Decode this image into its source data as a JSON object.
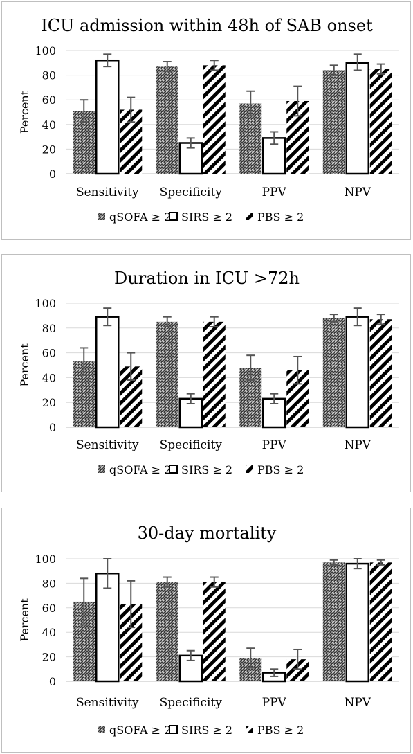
{
  "legend_labels": [
    "qSOFA ≥ 2",
    "SIRS ≥ 2",
    "PBS ≥ 2"
  ],
  "colors": {
    "axis": "#bfbfbf",
    "grid": "#d9d9d9",
    "bar": "#000000",
    "error": "#555555",
    "text": "#000000"
  },
  "chart_data": [
    {
      "type": "bar",
      "title": "ICU admission within 48h of SAB onset",
      "ylabel": "Percent",
      "xlabel": "",
      "categories": [
        "Sensitivity",
        "Specificity",
        "PPV",
        "NPV"
      ],
      "ylim": [
        0,
        100
      ],
      "yticks": [
        0,
        20,
        40,
        60,
        80,
        100
      ],
      "grid": true,
      "legend_position": "bottom",
      "series": [
        {
          "name": "qSOFA ≥ 2",
          "pattern": "crosshatch",
          "values": [
            51,
            87,
            57,
            84
          ],
          "err_low": [
            42,
            83,
            47,
            80
          ],
          "err_high": [
            60,
            91,
            67,
            88
          ]
        },
        {
          "name": "SIRS ≥ 2",
          "pattern": "open",
          "values": [
            92,
            25,
            29,
            90
          ],
          "err_low": [
            87,
            21,
            24,
            84
          ],
          "err_high": [
            97,
            29,
            34,
            97
          ]
        },
        {
          "name": "PBS ≥ 2",
          "pattern": "diagonal",
          "values": [
            52,
            88,
            59,
            85
          ],
          "err_low": [
            42,
            84,
            47,
            81
          ],
          "err_high": [
            62,
            92,
            71,
            89
          ]
        }
      ]
    },
    {
      "type": "bar",
      "title": "Duration in ICU >72h",
      "ylabel": "Percent",
      "xlabel": "",
      "categories": [
        "Sensitivity",
        "Specificity",
        "PPV",
        "NPV"
      ],
      "ylim": [
        0,
        100
      ],
      "yticks": [
        0,
        20,
        40,
        60,
        80,
        100
      ],
      "grid": true,
      "legend_position": "bottom",
      "series": [
        {
          "name": "qSOFA ≥ 2",
          "pattern": "crosshatch",
          "values": [
            53,
            85,
            48,
            88
          ],
          "err_low": [
            42,
            81,
            38,
            85
          ],
          "err_high": [
            64,
            89,
            58,
            91
          ]
        },
        {
          "name": "SIRS ≥ 2",
          "pattern": "open",
          "values": [
            89,
            23,
            23,
            89
          ],
          "err_low": [
            82,
            19,
            19,
            82
          ],
          "err_high": [
            96,
            27,
            27,
            96
          ]
        },
        {
          "name": "PBS ≥ 2",
          "pattern": "diagonal",
          "values": [
            49,
            85,
            46,
            87
          ],
          "err_low": [
            38,
            81,
            35,
            83
          ],
          "err_high": [
            60,
            89,
            57,
            91
          ]
        }
      ]
    },
    {
      "type": "bar",
      "title": "30-day mortality",
      "ylabel": "Percent",
      "xlabel": "",
      "categories": [
        "Sensitivity",
        "Specificity",
        "PPV",
        "NPV"
      ],
      "ylim": [
        0,
        100
      ],
      "yticks": [
        0,
        20,
        40,
        60,
        80,
        100
      ],
      "grid": true,
      "legend_position": "bottom",
      "series": [
        {
          "name": "qSOFA ≥ 2",
          "pattern": "crosshatch",
          "values": [
            65,
            81,
            19,
            97
          ],
          "err_low": [
            46,
            77,
            11,
            95
          ],
          "err_high": [
            84,
            85,
            27,
            99
          ]
        },
        {
          "name": "SIRS ≥ 2",
          "pattern": "open",
          "values": [
            88,
            21,
            7,
            96
          ],
          "err_low": [
            76,
            17,
            4,
            92
          ],
          "err_high": [
            100,
            25,
            10,
            100
          ]
        },
        {
          "name": "PBS ≥ 2",
          "pattern": "diagonal",
          "values": [
            63,
            81,
            18,
            97
          ],
          "err_low": [
            44,
            77,
            10,
            95
          ],
          "err_high": [
            82,
            85,
            26,
            99
          ]
        }
      ]
    }
  ]
}
